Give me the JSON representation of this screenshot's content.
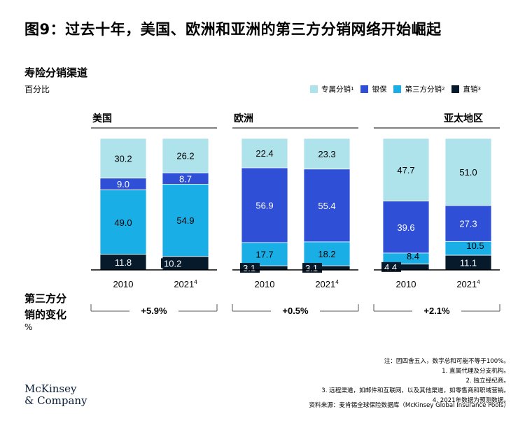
{
  "title": "图9：过去十年，美国、欧洲和亚洲的第三方分销网络开始崛起",
  "subtitle": "寿险分销渠道",
  "unit": "百分比",
  "legend": [
    {
      "label": "专属分销",
      "sup": "1",
      "color": "#aee3ec"
    },
    {
      "label": "银保",
      "sup": "",
      "color": "#2f4fd6"
    },
    {
      "label": "第三方分销",
      "sup": "2",
      "color": "#1aaee6"
    },
    {
      "label": "直销",
      "sup": "3",
      "color": "#061a2c"
    }
  ],
  "change_label_line1": "第三方分",
  "change_label_line2": "销的变化",
  "change_unit": "%",
  "chart_data": {
    "type": "bar",
    "stacked": true,
    "series": [
      {
        "name": "专属分销",
        "color": "#aee3ec"
      },
      {
        "name": "银保",
        "color": "#2f4fd6"
      },
      {
        "name": "第三方分销",
        "color": "#1aaee6"
      },
      {
        "name": "直销",
        "color": "#061a2c"
      }
    ],
    "panels": [
      {
        "region": "美国",
        "change": "+5.9%",
        "bars": [
          {
            "label": "2010",
            "sup": "",
            "values": [
              30.2,
              9.0,
              49.0,
              11.8
            ]
          },
          {
            "label": "2021",
            "sup": "4",
            "values": [
              26.2,
              8.7,
              54.9,
              10.2
            ]
          }
        ]
      },
      {
        "region": "欧洲",
        "change": "+0.5%",
        "bars": [
          {
            "label": "2010",
            "sup": "",
            "values": [
              22.4,
              56.9,
              17.7,
              3.1
            ]
          },
          {
            "label": "2021",
            "sup": "4",
            "values": [
              23.3,
              55.4,
              18.2,
              3.1
            ]
          }
        ]
      },
      {
        "region": "亚太地区",
        "change": "+2.1%",
        "bars": [
          {
            "label": "2010",
            "sup": "",
            "values": [
              47.7,
              39.6,
              8.4,
              4.4
            ]
          },
          {
            "label": "2021",
            "sup": "4",
            "values": [
              51.0,
              27.3,
              10.5,
              11.1
            ]
          }
        ]
      }
    ]
  },
  "notes": [
    "注：因四舍五入，数字总和可能不等于100%。",
    "1. 直属代理及分支机构。",
    "2. 独立经纪商。",
    "3. 远程渠道，如邮件和互联网，以及其他渠道，如零售商和职域营销。",
    "4. 2021年数据为预测数据。"
  ],
  "source": "资料来源：麦肯锡全球保险数据库（McKinsey Global Insurance Pools）",
  "logo_line1": "McKinsey",
  "logo_line2": "& Company"
}
